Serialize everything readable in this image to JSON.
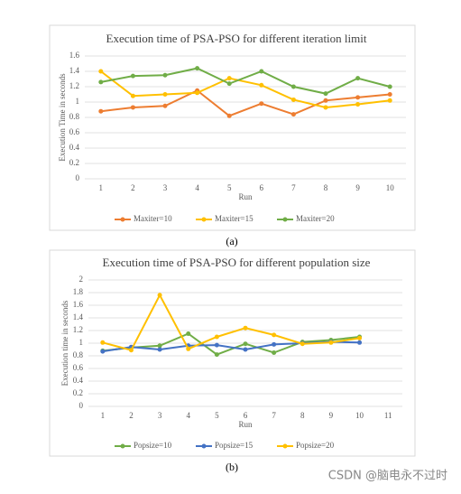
{
  "chart_data": [
    {
      "type": "line",
      "title": "Execution time of PSA-PSO for different iteration limit",
      "x_label": "Run",
      "y_label": "Execution Time in seconds",
      "categories": [
        "1",
        "2",
        "3",
        "4",
        "5",
        "6",
        "7",
        "8",
        "9",
        "10"
      ],
      "series": [
        {
          "name": "Maxiter=10",
          "color": "#ed7d31",
          "values": [
            0.88,
            0.93,
            0.95,
            1.15,
            0.82,
            0.98,
            0.84,
            1.02,
            1.06,
            1.1
          ]
        },
        {
          "name": "Maxiter=15",
          "color": "#ffc000",
          "values": [
            1.4,
            1.08,
            1.1,
            1.12,
            1.31,
            1.22,
            1.03,
            0.93,
            0.97,
            1.02
          ]
        },
        {
          "name": "Maxiter=20",
          "color": "#70ad47",
          "values": [
            1.26,
            1.34,
            1.35,
            1.44,
            1.24,
            1.4,
            1.2,
            1.11,
            1.31,
            1.2
          ]
        }
      ],
      "ylim": [
        0,
        1.6
      ],
      "yticks": [
        0,
        0.2,
        0.4,
        0.6,
        0.8,
        1,
        1.2,
        1.4,
        1.6
      ],
      "grid": true,
      "legend": "bottom"
    },
    {
      "type": "line",
      "title": "Execution time of PSA-PSO for different population size",
      "x_label": "Run",
      "y_label": "Execution time in seconds",
      "categories": [
        "1",
        "2",
        "3",
        "4",
        "5",
        "6",
        "7",
        "8",
        "9",
        "10",
        "11"
      ],
      "series": [
        {
          "name": "Popsize=10",
          "color": "#70ad47",
          "values": [
            0.88,
            0.93,
            0.96,
            1.15,
            0.82,
            0.99,
            0.85,
            1.02,
            1.05,
            1.1,
            null
          ]
        },
        {
          "name": "Popsize=15",
          "color": "#4472c4",
          "values": [
            0.87,
            0.94,
            0.9,
            0.96,
            0.97,
            0.9,
            0.98,
            1.0,
            1.02,
            1.01,
            null
          ]
        },
        {
          "name": "Popsize=20",
          "color": "#ffc000",
          "values": [
            1.01,
            0.89,
            1.76,
            0.91,
            1.1,
            1.24,
            1.13,
            0.99,
            1.01,
            1.08,
            null
          ]
        }
      ],
      "ylim": [
        0,
        2
      ],
      "yticks": [
        0,
        0.2,
        0.4,
        0.6,
        0.8,
        1,
        1.2,
        1.4,
        1.6,
        1.8,
        2
      ],
      "grid": true,
      "legend": "bottom"
    }
  ],
  "captions": [
    "(a)",
    "(b)"
  ],
  "watermark": "CSDN @脑电永不过时"
}
